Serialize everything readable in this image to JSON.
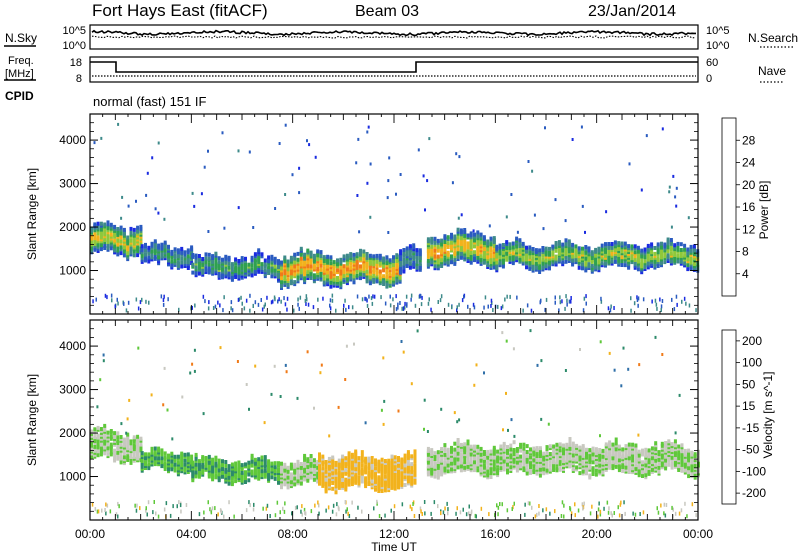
{
  "header": {
    "station": "Fort Hays East (fitACF)",
    "beam": "Beam 03",
    "date": "23/Jan/2014"
  },
  "top_panels": {
    "nsky_label": "N.Sky",
    "nsearch_label": "N.Search",
    "nsky_ticks": [
      "10^5",
      "10^0"
    ],
    "nsky_right_ticks": [
      "10^5",
      "10^0"
    ],
    "freq_label_1": "Freq.",
    "freq_label_2": "[MHz]",
    "freq_ticks": [
      "18",
      "8"
    ],
    "nave_label": "Nave",
    "nave_ticks": [
      "60",
      "0"
    ],
    "cpid_label": "CPID",
    "cpid_text": "normal (fast) 151 IF"
  },
  "chart_data": [
    {
      "type": "heatmap",
      "title": "",
      "xlabel": "Time UT",
      "ylabel": "Slant Range [km]",
      "x_ticks": [
        "00:00",
        "04:00",
        "08:00",
        "12:00",
        "16:00",
        "20:00",
        "00:00"
      ],
      "xlim_hours": [
        0,
        24
      ],
      "ylim": [
        0,
        4600
      ],
      "y_ticks": [
        1000,
        2000,
        3000,
        4000
      ],
      "colorbar": {
        "label": "Power [dB]",
        "ticks": [
          4,
          8,
          12,
          16,
          20,
          24,
          28
        ],
        "range": [
          0,
          32
        ],
        "colors": [
          "#1a2be0",
          "#2a5bc0",
          "#3e8a8a",
          "#2fa050",
          "#8fc83a",
          "#f2b21c",
          "#f07a18",
          "#e02a10"
        ]
      },
      "echo_bands": [
        {
          "t0": 0.0,
          "t1": 2.0,
          "center_km": 1700,
          "width_km": 600,
          "level": 20
        },
        {
          "t0": 2.0,
          "t1": 4.0,
          "center_km": 1350,
          "width_km": 400,
          "level": 12
        },
        {
          "t0": 4.0,
          "t1": 7.5,
          "center_km": 1100,
          "width_km": 450,
          "level": 14
        },
        {
          "t0": 7.5,
          "t1": 12.2,
          "center_km": 1050,
          "width_km": 650,
          "level": 24
        },
        {
          "t0": 12.2,
          "t1": 13.0,
          "center_km": 1200,
          "width_km": 500,
          "level": 10
        },
        {
          "t0": 13.3,
          "t1": 16.0,
          "center_km": 1500,
          "width_km": 650,
          "level": 22
        },
        {
          "t0": 16.0,
          "t1": 24.0,
          "center_km": 1350,
          "width_km": 500,
          "level": 18
        }
      ]
    },
    {
      "type": "heatmap",
      "title": "",
      "xlabel": "Time UT",
      "ylabel": "Slant Range [km]",
      "x_ticks": [
        "00:00",
        "04:00",
        "08:00",
        "12:00",
        "16:00",
        "20:00",
        "00:00"
      ],
      "xlim_hours": [
        0,
        24
      ],
      "ylim": [
        0,
        4600
      ],
      "y_ticks": [
        1000,
        2000,
        3000,
        4000
      ],
      "colorbar": {
        "label": "Velocity [m s^-1]",
        "ticks": [
          "200",
          "100",
          "50",
          "15",
          "-15",
          "-50",
          "-100",
          "-200"
        ],
        "colors": [
          "#1f3fb8",
          "#2f6fa8",
          "#2c8a6a",
          "#5fc83a",
          "#c8c8c0",
          "#f2b21c",
          "#f07a18",
          "#e02a10"
        ]
      },
      "echo_bands": [
        {
          "t0": 0.0,
          "t1": 2.0,
          "center_km": 1700,
          "width_km": 600,
          "velocity": 0
        },
        {
          "t0": 2.0,
          "t1": 4.0,
          "center_km": 1350,
          "width_km": 400,
          "velocity": 30
        },
        {
          "t0": 4.0,
          "t1": 7.5,
          "center_km": 1150,
          "width_km": 450,
          "velocity": 30
        },
        {
          "t0": 7.5,
          "t1": 9.0,
          "center_km": 1100,
          "width_km": 500,
          "velocity": 0
        },
        {
          "t0": 9.0,
          "t1": 12.8,
          "center_km": 1100,
          "width_km": 700,
          "velocity": -40
        },
        {
          "t0": 13.3,
          "t1": 24.0,
          "center_km": 1400,
          "width_km": 600,
          "velocity": 0
        }
      ]
    }
  ]
}
